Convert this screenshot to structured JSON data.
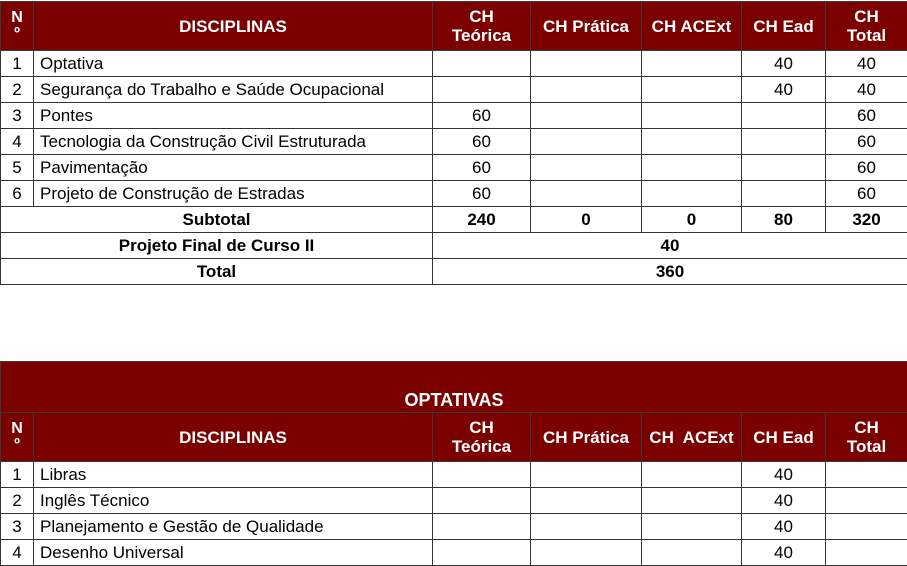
{
  "colors": {
    "header_bg": "#7b0000",
    "header_text": "#ffffff"
  },
  "table1": {
    "headers": [
      "Nº",
      "DISCIPLINAS",
      "CH Teórica",
      "CH Prática",
      "CH ACExt",
      "CH Ead",
      "CH Total"
    ],
    "header_lines": {
      "num": [
        "N",
        "º"
      ],
      "teorica": [
        "CH",
        "Teórica"
      ],
      "total": [
        "CH",
        "Total"
      ]
    },
    "rows": [
      {
        "n": "1",
        "name": "Optativa",
        "teorica": "",
        "pratica": "",
        "acext": "",
        "ead": "40",
        "total": "40"
      },
      {
        "n": "2",
        "name": "Segurança do Trabalho e Saúde Ocupacional",
        "teorica": "",
        "pratica": "",
        "acext": "",
        "ead": "40",
        "total": "40"
      },
      {
        "n": "3",
        "name": "Pontes",
        "teorica": "60",
        "pratica": "",
        "acext": "",
        "ead": "",
        "total": "60"
      },
      {
        "n": "4",
        "name": "Tecnologia da Construção Civil Estruturada",
        "teorica": "60",
        "pratica": "",
        "acext": "",
        "ead": "",
        "total": "60"
      },
      {
        "n": "5",
        "name": "Pavimentação",
        "teorica": "60",
        "pratica": "",
        "acext": "",
        "ead": "",
        "total": "60"
      },
      {
        "n": "6",
        "name": "Projeto de Construção de Estradas",
        "teorica": "60",
        "pratica": "",
        "acext": "",
        "ead": "",
        "total": "60"
      }
    ],
    "subtotal": {
      "label": "Subtotal",
      "teorica": "240",
      "pratica": "0",
      "acext": "0",
      "ead": "80",
      "total": "320"
    },
    "pfc": {
      "label": "Projeto Final de Curso II",
      "value": "40"
    },
    "total": {
      "label": "Total",
      "value": "360"
    }
  },
  "table2": {
    "title": "OPTATIVAS",
    "headers": [
      "Nº",
      "DISCIPLINAS",
      "CH Teórica",
      "CH Prática",
      "CH  ACExt",
      "CH Ead",
      "CH Total"
    ],
    "rows": [
      {
        "n": "1",
        "name": "Libras",
        "teorica": "",
        "pratica": "",
        "acext": "",
        "ead": "40",
        "total": ""
      },
      {
        "n": "2",
        "name": "Inglês Técnico",
        "teorica": "",
        "pratica": "",
        "acext": "",
        "ead": "40",
        "total": ""
      },
      {
        "n": "3",
        "name": "Planejamento e Gestão de Qualidade",
        "teorica": "",
        "pratica": "",
        "acext": "",
        "ead": "40",
        "total": ""
      },
      {
        "n": "4",
        "name": "Desenho Universal",
        "teorica": "",
        "pratica": "",
        "acext": "",
        "ead": "40",
        "total": ""
      }
    ]
  }
}
